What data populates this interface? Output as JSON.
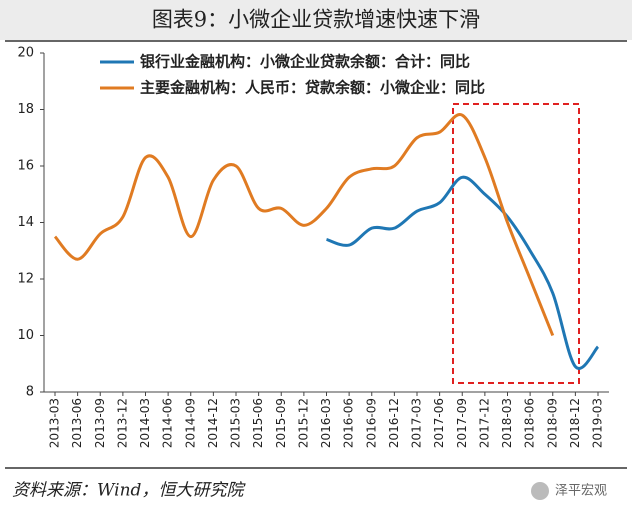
{
  "chart_data": {
    "type": "line",
    "title": "图表9：小微企业贷款增速快速下滑",
    "source": "资料来源：Wind，恒大研究院",
    "watermark": "泽平宏观",
    "categories": [
      "2013-03",
      "2013-06",
      "2013-09",
      "2013-12",
      "2014-03",
      "2014-06",
      "2014-09",
      "2014-12",
      "2015-03",
      "2015-06",
      "2015-09",
      "2015-12",
      "2016-03",
      "2016-06",
      "2016-09",
      "2016-12",
      "2017-03",
      "2017-06",
      "2017-09",
      "2017-12",
      "2018-03",
      "2018-06",
      "2018-09",
      "2018-12",
      "2019-03"
    ],
    "series": [
      {
        "name": "银行业金融机构：小微企业贷款余额：合计：同比",
        "color": "#1f77b4",
        "values": [
          null,
          null,
          null,
          null,
          null,
          null,
          null,
          null,
          null,
          null,
          null,
          null,
          13.4,
          13.2,
          13.8,
          13.8,
          14.4,
          14.7,
          15.6,
          15.0,
          14.2,
          13.0,
          11.5,
          8.9,
          9.6
        ]
      },
      {
        "name": "主要金融机构：人民币：贷款余额：小微企业：同比",
        "color": "#e07b22",
        "values": [
          13.5,
          12.7,
          13.6,
          14.2,
          16.3,
          15.6,
          13.5,
          15.5,
          16.0,
          14.5,
          14.5,
          13.9,
          14.5,
          15.6,
          15.9,
          16.0,
          17.0,
          17.2,
          17.8,
          16.3,
          14.0,
          12.0,
          10.0,
          null,
          null
        ]
      }
    ],
    "ylim": [
      8,
      20
    ],
    "yticks": [
      8,
      10,
      12,
      14,
      16,
      18,
      20
    ],
    "grid": false,
    "legend": "upper left"
  }
}
